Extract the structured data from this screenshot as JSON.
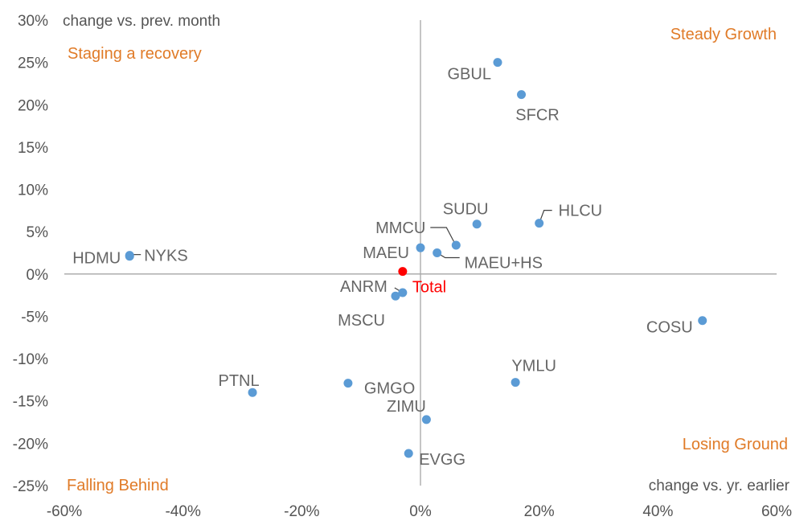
{
  "chart_data": {
    "type": "scatter",
    "title": "",
    "xlabel": "change vs. yr. earlier",
    "ylabel": "change vs. prev. month",
    "xlim": [
      -0.6,
      0.6
    ],
    "ylim": [
      -0.25,
      0.3
    ],
    "x_ticks": [
      -0.6,
      -0.4,
      -0.2,
      0,
      0.2,
      0.4,
      0.6
    ],
    "x_tick_labels": [
      "-60%",
      "-40%",
      "-20%",
      "0%",
      "20%",
      "40%",
      "60%"
    ],
    "y_ticks": [
      0.3,
      0.25,
      0.2,
      0.15,
      0.1,
      0.05,
      0,
      -0.05,
      -0.1,
      -0.15,
      -0.2,
      -0.25
    ],
    "y_tick_labels": [
      "30%",
      "25%",
      "20%",
      "15%",
      "10%",
      "5%",
      "0%",
      "-5%",
      "-10%",
      "-15%",
      "-20%",
      "-25%"
    ],
    "grid": false,
    "quadrants": [
      {
        "label": "Steady Growth",
        "position": "top-right"
      },
      {
        "label": "Staging a recovery",
        "position": "top-left"
      },
      {
        "label": "Losing Ground",
        "position": "bottom-right"
      },
      {
        "label": "Falling Behind",
        "position": "bottom-left"
      }
    ],
    "points": [
      {
        "name": "GBUL",
        "x": 0.13,
        "y": 0.25
      },
      {
        "name": "SFCR",
        "x": 0.17,
        "y": 0.212
      },
      {
        "name": "SUDU",
        "x": 0.095,
        "y": 0.059
      },
      {
        "name": "HLCU",
        "x": 0.2,
        "y": 0.06
      },
      {
        "name": "MMCU",
        "x": 0.06,
        "y": 0.034
      },
      {
        "name": "MAEU",
        "x": 0.0,
        "y": 0.031
      },
      {
        "name": "MAEU+HS",
        "x": 0.028,
        "y": 0.025
      },
      {
        "name": "NYKS",
        "x": -0.49,
        "y": 0.022
      },
      {
        "name": "HDMU",
        "x": -0.49,
        "y": 0.021
      },
      {
        "name": "Total",
        "x": -0.03,
        "y": 0.003
      },
      {
        "name": "ANRM",
        "x": -0.03,
        "y": -0.022
      },
      {
        "name": "MSCU",
        "x": -0.042,
        "y": -0.026
      },
      {
        "name": "COSU",
        "x": 0.475,
        "y": -0.055
      },
      {
        "name": "YMLU",
        "x": 0.16,
        "y": -0.128
      },
      {
        "name": "GMGO",
        "x": -0.122,
        "y": -0.129
      },
      {
        "name": "PTNL",
        "x": -0.283,
        "y": -0.14
      },
      {
        "name": "ZIMU",
        "x": 0.01,
        "y": -0.172
      },
      {
        "name": "EVGG",
        "x": -0.02,
        "y": -0.212
      }
    ]
  },
  "colors": {
    "point": "#5b9bd5",
    "total_point": "#ff0000",
    "label": "#666666",
    "total_label": "#ff0000",
    "quadrant": "#e07b28",
    "axis": "#a6a6a6",
    "leader": "#404040"
  }
}
